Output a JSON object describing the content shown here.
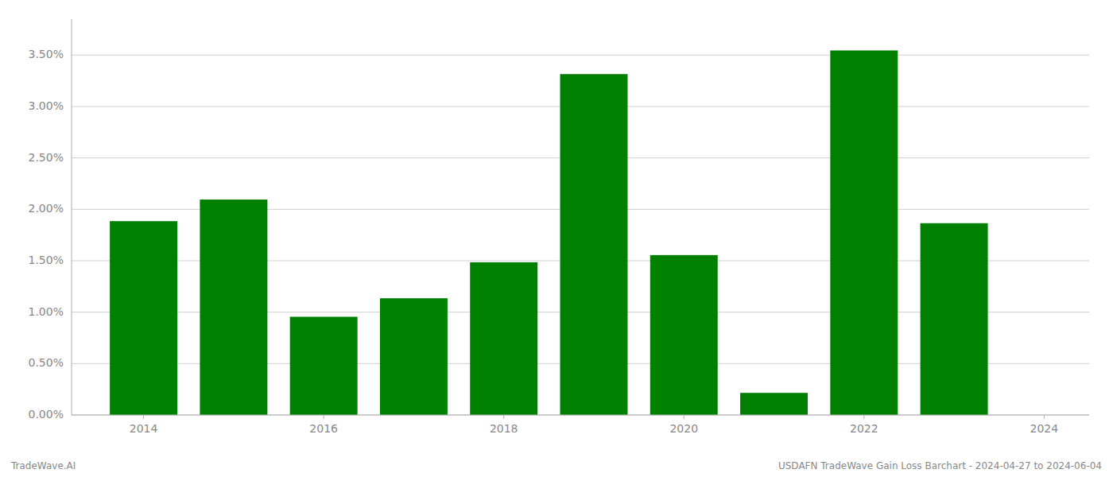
{
  "chart_data": {
    "type": "bar",
    "x": [
      2014,
      2015,
      2016,
      2017,
      2018,
      2019,
      2020,
      2021,
      2022,
      2023
    ],
    "values": [
      0.01885,
      0.02095,
      0.00955,
      0.01135,
      0.01485,
      0.03315,
      0.01555,
      0.00215,
      0.03545,
      0.01865
    ],
    "color": "#008000",
    "xlim": [
      2013.2,
      2024.5
    ],
    "xticks": [
      2014,
      2016,
      2018,
      2020,
      2022,
      2024
    ],
    "ylim": [
      0,
      0.0385
    ],
    "yticks": [
      {
        "value": 0.0,
        "label": "0.00%"
      },
      {
        "value": 0.005,
        "label": "0.50%"
      },
      {
        "value": 0.01,
        "label": "1.00%"
      },
      {
        "value": 0.015,
        "label": "1.50%"
      },
      {
        "value": 0.02,
        "label": "2.00%"
      },
      {
        "value": 0.025,
        "label": "2.50%"
      },
      {
        "value": 0.03,
        "label": "3.00%"
      },
      {
        "value": 0.035,
        "label": "3.50%"
      }
    ],
    "grid": true,
    "annotations": [
      "TradeWave.AI",
      "USDAFN TradeWave Gain Loss Barchart - 2024-04-27 to 2024-06-04"
    ]
  }
}
